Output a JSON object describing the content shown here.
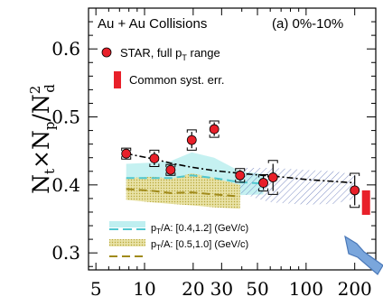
{
  "chart_data": {
    "type": "scatter",
    "title": "Au + Au Collisions",
    "panel_label": "(a) 0%-10%",
    "ylabel_parts": {
      "n1": "N",
      "s1": "t",
      "times1": "×",
      "n2": "N",
      "s2": "p",
      "slash": "/",
      "n3": "N",
      "sup3": "2",
      "s3": "d"
    },
    "x_scale": "log",
    "xlim": [
      4.5,
      270
    ],
    "ylim": [
      0.275,
      0.66
    ],
    "x_ticks": [
      "5",
      "10",
      "20",
      "30",
      "50",
      "100",
      "200"
    ],
    "x_tick_values": [
      5,
      10,
      20,
      30,
      50,
      100,
      200
    ],
    "y_ticks": [
      "0.3",
      "0.4",
      "0.5",
      "0.6"
    ],
    "y_tick_values": [
      0.3,
      0.4,
      0.5,
      0.6
    ],
    "series": [
      {
        "name": "STAR, full p_T range",
        "color": "#e8202a",
        "points": [
          {
            "x": 7.7,
            "y": 0.446,
            "stat": 0.006,
            "sys": 0.008
          },
          {
            "x": 11.5,
            "y": 0.439,
            "stat": 0.01,
            "sys": 0.012
          },
          {
            "x": 14.5,
            "y": 0.422,
            "stat": 0.007,
            "sys": 0.008
          },
          {
            "x": 19.6,
            "y": 0.466,
            "stat": 0.012,
            "sys": 0.015
          },
          {
            "x": 27,
            "y": 0.482,
            "stat": 0.01,
            "sys": 0.012
          },
          {
            "x": 39,
            "y": 0.414,
            "stat": 0.008,
            "sys": 0.01
          },
          {
            "x": 54.4,
            "y": 0.403,
            "stat": 0.01,
            "sys": 0.012
          },
          {
            "x": 62.4,
            "y": 0.411,
            "stat": 0.02,
            "sys": 0.025
          },
          {
            "x": 200,
            "y": 0.392,
            "stat": 0.022,
            "sys": 0.025
          }
        ]
      }
    ],
    "common_syst_err": {
      "x": 235,
      "y_low": 0.356,
      "y_high": 0.392,
      "color": "#e8202a"
    },
    "trend_line": {
      "x": [
        7.7,
        11.5,
        14.5,
        19.6,
        27,
        39,
        54.4,
        62.4,
        100,
        150,
        200
      ],
      "y": [
        0.446,
        0.438,
        0.432,
        0.426,
        0.421,
        0.417,
        0.414,
        0.413,
        0.408,
        0.405,
        0.403
      ],
      "color": "#000000"
    },
    "bands": [
      {
        "name": "cyan",
        "fill": "#bfeff0",
        "x": [
          7.7,
          11.5,
          14.5,
          19.6,
          27,
          39,
          54.4
        ],
        "upper": [
          0.431,
          0.433,
          0.435,
          0.448,
          0.44,
          0.42,
          0.416
        ],
        "lower": [
          0.392,
          0.392,
          0.39,
          0.392,
          0.388,
          0.385,
          0.386
        ]
      },
      {
        "name": "hatched",
        "fill": "none",
        "stroke": "#5b6fb5",
        "x": [
          39,
          54.4,
          62.4,
          100,
          150,
          200
        ],
        "upper": [
          0.425,
          0.425,
          0.425,
          0.422,
          0.42,
          0.415
        ],
        "lower": [
          0.388,
          0.377,
          0.374,
          0.371,
          0.372,
          0.38
        ]
      },
      {
        "name": "olive-dotted",
        "fill": "#d9d07a",
        "x": [
          7.7,
          11.5,
          14.5,
          19.6,
          27,
          39
        ],
        "upper": [
          0.41,
          0.412,
          0.409,
          0.417,
          0.41,
          0.4
        ],
        "lower": [
          0.378,
          0.374,
          0.372,
          0.37,
          0.367,
          0.365
        ]
      }
    ],
    "dashed_lines": [
      {
        "name": "cyan-dash",
        "color": "#4fc7cf",
        "x": [
          7.7,
          11.5,
          14.5,
          19.6,
          27,
          39,
          54.4
        ],
        "y": [
          0.41,
          0.41,
          0.41,
          0.414,
          0.41,
          0.404,
          0.402
        ]
      },
      {
        "name": "olive-dash",
        "color": "#a08a1a",
        "x": [
          7.7,
          11.5,
          14.5,
          19.6,
          27,
          39
        ],
        "y": [
          0.394,
          0.391,
          0.388,
          0.389,
          0.386,
          0.383
        ]
      }
    ],
    "legend": [
      {
        "kind": "marker",
        "text": "STAR, full p",
        "sub": "T",
        "tail": " range",
        "color": "#e8202a"
      },
      {
        "kind": "box",
        "text": "Common syst. err.",
        "sub": "",
        "tail": "",
        "color": "#e8202a"
      }
    ],
    "legend2": [
      {
        "kind": "cyan",
        "text": "p",
        "sub": "T",
        "tail": "/A: [0.4,1.2] (GeV/c)"
      },
      {
        "kind": "olive",
        "text": "p",
        "sub": "T",
        "tail": "/A: [0.5,1.0] (GeV/c)"
      }
    ],
    "arrow_color": "#6e9bd2"
  }
}
